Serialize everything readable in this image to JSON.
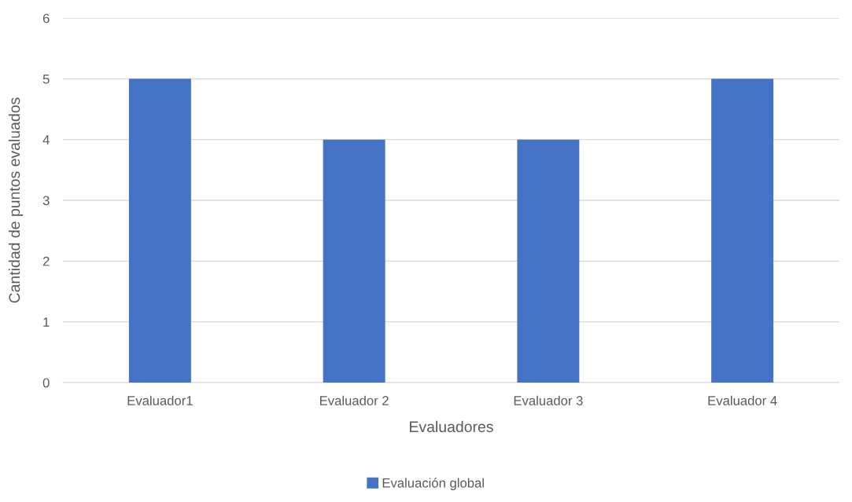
{
  "chart_data": {
    "type": "bar",
    "xlabel": "Evaluadores",
    "ylabel": "Cantidad de puntos evaluados",
    "categories": [
      "Evaluador1",
      "Evaluador 2",
      "Evaluador 3",
      "Evaluador 4"
    ],
    "series": [
      {
        "name": "Evaluación global",
        "color": "#4472c4",
        "values": [
          5,
          4,
          4,
          5
        ]
      }
    ],
    "ylim": [
      0,
      6
    ],
    "yticks": [
      0,
      1,
      2,
      3,
      4,
      5,
      6
    ],
    "grid": "y",
    "legend": "bottom"
  }
}
